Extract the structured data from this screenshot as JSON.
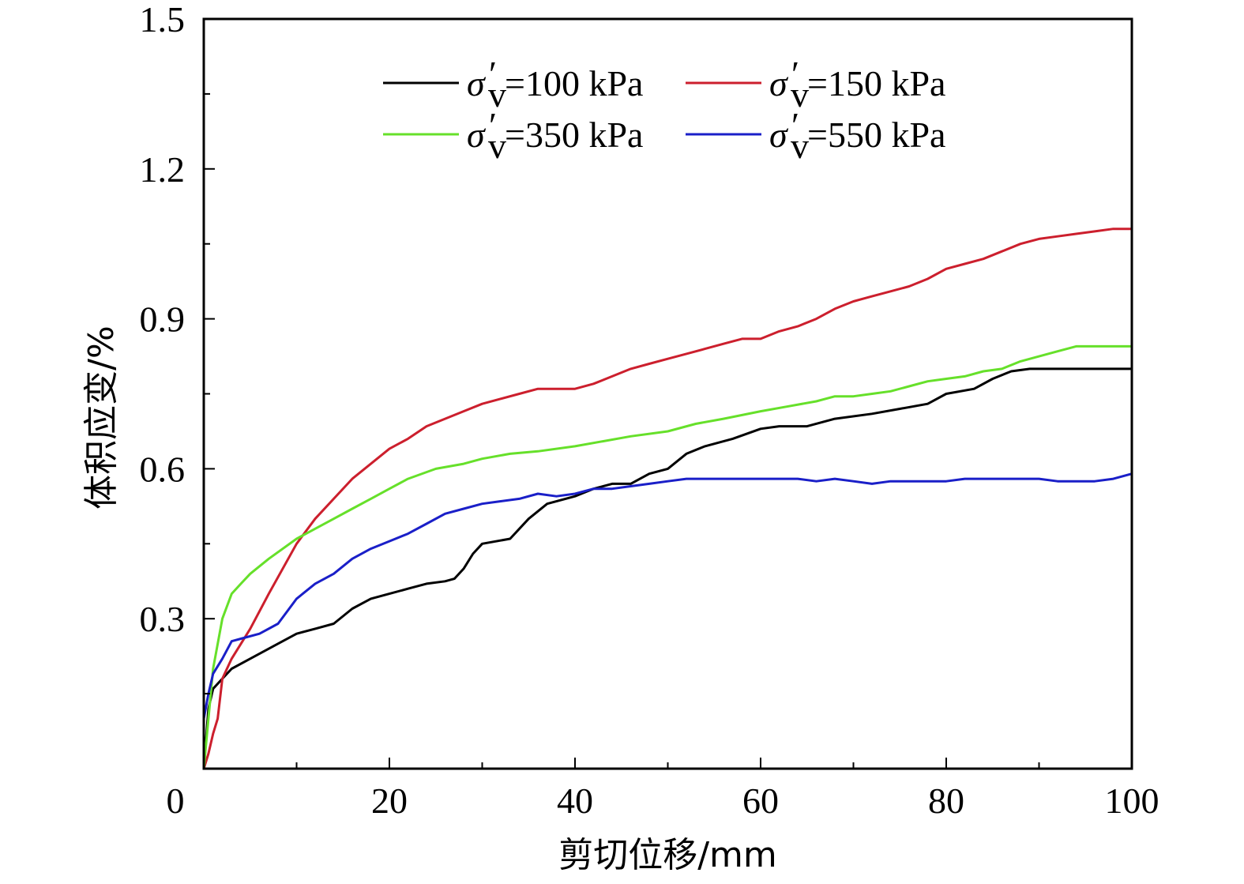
{
  "chart_data": {
    "type": "line",
    "xlabel": "剪切位移/mm",
    "ylabel": "体积应变/%",
    "xlim": [
      0,
      100
    ],
    "ylim": [
      0,
      1.5
    ],
    "x_ticks": [
      0,
      20,
      40,
      60,
      80,
      100
    ],
    "x_tick_labels": [
      "0",
      "20",
      "40",
      "60",
      "80",
      "100"
    ],
    "y_ticks": [
      0.3,
      0.6,
      0.9,
      1.2,
      1.5
    ],
    "y_tick_labels": [
      "0.3",
      "0.6",
      "0.9",
      "1.2",
      "1.5"
    ],
    "grid": false,
    "legend_position": "top-center",
    "legend_symbol": "σ",
    "legend_prime": "′",
    "legend_subscript": "v",
    "series": [
      {
        "name": "=100 kPa",
        "color": "#000000",
        "points": [
          [
            0,
            0
          ],
          [
            0.5,
            0.12
          ],
          [
            1,
            0.16
          ],
          [
            2,
            0.18
          ],
          [
            3,
            0.2
          ],
          [
            5,
            0.22
          ],
          [
            8,
            0.25
          ],
          [
            10,
            0.27
          ],
          [
            12,
            0.28
          ],
          [
            14,
            0.29
          ],
          [
            16,
            0.32
          ],
          [
            18,
            0.34
          ],
          [
            20,
            0.35
          ],
          [
            22,
            0.36
          ],
          [
            24,
            0.37
          ],
          [
            26,
            0.375
          ],
          [
            27,
            0.38
          ],
          [
            28,
            0.4
          ],
          [
            29,
            0.43
          ],
          [
            30,
            0.45
          ],
          [
            33,
            0.46
          ],
          [
            35,
            0.5
          ],
          [
            37,
            0.53
          ],
          [
            40,
            0.545
          ],
          [
            42,
            0.56
          ],
          [
            44,
            0.57
          ],
          [
            46,
            0.57
          ],
          [
            48,
            0.59
          ],
          [
            50,
            0.6
          ],
          [
            52,
            0.63
          ],
          [
            54,
            0.645
          ],
          [
            57,
            0.66
          ],
          [
            60,
            0.68
          ],
          [
            62,
            0.685
          ],
          [
            65,
            0.685
          ],
          [
            68,
            0.7
          ],
          [
            72,
            0.71
          ],
          [
            75,
            0.72
          ],
          [
            78,
            0.73
          ],
          [
            80,
            0.75
          ],
          [
            83,
            0.76
          ],
          [
            85,
            0.78
          ],
          [
            87,
            0.795
          ],
          [
            89,
            0.8
          ],
          [
            92,
            0.8
          ],
          [
            95,
            0.8
          ],
          [
            100,
            0.8
          ]
        ]
      },
      {
        "name": "=150 kPa",
        "color": "#cc1f2d",
        "points": [
          [
            0,
            0
          ],
          [
            0.5,
            0.03
          ],
          [
            1,
            0.07
          ],
          [
            1.5,
            0.1
          ],
          [
            2,
            0.18
          ],
          [
            3,
            0.22
          ],
          [
            5,
            0.28
          ],
          [
            7,
            0.35
          ],
          [
            10,
            0.45
          ],
          [
            12,
            0.5
          ],
          [
            14,
            0.54
          ],
          [
            16,
            0.58
          ],
          [
            18,
            0.61
          ],
          [
            20,
            0.64
          ],
          [
            22,
            0.66
          ],
          [
            24,
            0.685
          ],
          [
            26,
            0.7
          ],
          [
            28,
            0.715
          ],
          [
            30,
            0.73
          ],
          [
            32,
            0.74
          ],
          [
            34,
            0.75
          ],
          [
            36,
            0.76
          ],
          [
            38,
            0.76
          ],
          [
            40,
            0.76
          ],
          [
            42,
            0.77
          ],
          [
            44,
            0.785
          ],
          [
            46,
            0.8
          ],
          [
            48,
            0.81
          ],
          [
            50,
            0.82
          ],
          [
            52,
            0.83
          ],
          [
            54,
            0.84
          ],
          [
            56,
            0.85
          ],
          [
            58,
            0.86
          ],
          [
            60,
            0.86
          ],
          [
            62,
            0.875
          ],
          [
            64,
            0.885
          ],
          [
            66,
            0.9
          ],
          [
            68,
            0.92
          ],
          [
            70,
            0.935
          ],
          [
            72,
            0.945
          ],
          [
            74,
            0.955
          ],
          [
            76,
            0.965
          ],
          [
            78,
            0.98
          ],
          [
            80,
            1.0
          ],
          [
            82,
            1.01
          ],
          [
            84,
            1.02
          ],
          [
            86,
            1.035
          ],
          [
            88,
            1.05
          ],
          [
            90,
            1.06
          ],
          [
            92,
            1.065
          ],
          [
            94,
            1.07
          ],
          [
            96,
            1.075
          ],
          [
            98,
            1.08
          ],
          [
            100,
            1.08
          ]
        ]
      },
      {
        "name": "=350 kPa",
        "color": "#66e02a",
        "points": [
          [
            0,
            0
          ],
          [
            0.5,
            0.1
          ],
          [
            1,
            0.2
          ],
          [
            2,
            0.3
          ],
          [
            3,
            0.35
          ],
          [
            4,
            0.37
          ],
          [
            5,
            0.39
          ],
          [
            7,
            0.42
          ],
          [
            10,
            0.46
          ],
          [
            12,
            0.48
          ],
          [
            14,
            0.5
          ],
          [
            16,
            0.52
          ],
          [
            18,
            0.54
          ],
          [
            20,
            0.56
          ],
          [
            22,
            0.58
          ],
          [
            25,
            0.6
          ],
          [
            28,
            0.61
          ],
          [
            30,
            0.62
          ],
          [
            33,
            0.63
          ],
          [
            36,
            0.635
          ],
          [
            40,
            0.645
          ],
          [
            43,
            0.655
          ],
          [
            46,
            0.665
          ],
          [
            50,
            0.675
          ],
          [
            53,
            0.69
          ],
          [
            56,
            0.7
          ],
          [
            60,
            0.715
          ],
          [
            63,
            0.725
          ],
          [
            66,
            0.735
          ],
          [
            68,
            0.745
          ],
          [
            70,
            0.745
          ],
          [
            72,
            0.75
          ],
          [
            74,
            0.755
          ],
          [
            76,
            0.765
          ],
          [
            78,
            0.775
          ],
          [
            80,
            0.78
          ],
          [
            82,
            0.785
          ],
          [
            84,
            0.795
          ],
          [
            86,
            0.8
          ],
          [
            88,
            0.815
          ],
          [
            90,
            0.825
          ],
          [
            92,
            0.835
          ],
          [
            94,
            0.845
          ],
          [
            96,
            0.845
          ],
          [
            100,
            0.845
          ]
        ]
      },
      {
        "name": "=550 kPa",
        "color": "#1a1fc8",
        "points": [
          [
            0,
            0.1
          ],
          [
            0.5,
            0.15
          ],
          [
            1,
            0.19
          ],
          [
            2,
            0.22
          ],
          [
            3,
            0.255
          ],
          [
            4,
            0.26
          ],
          [
            6,
            0.27
          ],
          [
            8,
            0.29
          ],
          [
            10,
            0.34
          ],
          [
            12,
            0.37
          ],
          [
            14,
            0.39
          ],
          [
            16,
            0.42
          ],
          [
            18,
            0.44
          ],
          [
            20,
            0.455
          ],
          [
            22,
            0.47
          ],
          [
            24,
            0.49
          ],
          [
            26,
            0.51
          ],
          [
            28,
            0.52
          ],
          [
            30,
            0.53
          ],
          [
            32,
            0.535
          ],
          [
            34,
            0.54
          ],
          [
            36,
            0.55
          ],
          [
            38,
            0.545
          ],
          [
            40,
            0.55
          ],
          [
            42,
            0.56
          ],
          [
            44,
            0.56
          ],
          [
            46,
            0.565
          ],
          [
            48,
            0.57
          ],
          [
            50,
            0.575
          ],
          [
            52,
            0.58
          ],
          [
            54,
            0.58
          ],
          [
            56,
            0.58
          ],
          [
            58,
            0.58
          ],
          [
            60,
            0.58
          ],
          [
            62,
            0.58
          ],
          [
            64,
            0.58
          ],
          [
            66,
            0.575
          ],
          [
            68,
            0.58
          ],
          [
            70,
            0.575
          ],
          [
            72,
            0.57
          ],
          [
            74,
            0.575
          ],
          [
            76,
            0.575
          ],
          [
            78,
            0.575
          ],
          [
            80,
            0.575
          ],
          [
            82,
            0.58
          ],
          [
            84,
            0.58
          ],
          [
            86,
            0.58
          ],
          [
            88,
            0.58
          ],
          [
            90,
            0.58
          ],
          [
            92,
            0.575
          ],
          [
            94,
            0.575
          ],
          [
            96,
            0.575
          ],
          [
            98,
            0.58
          ],
          [
            100,
            0.59
          ]
        ]
      }
    ]
  }
}
